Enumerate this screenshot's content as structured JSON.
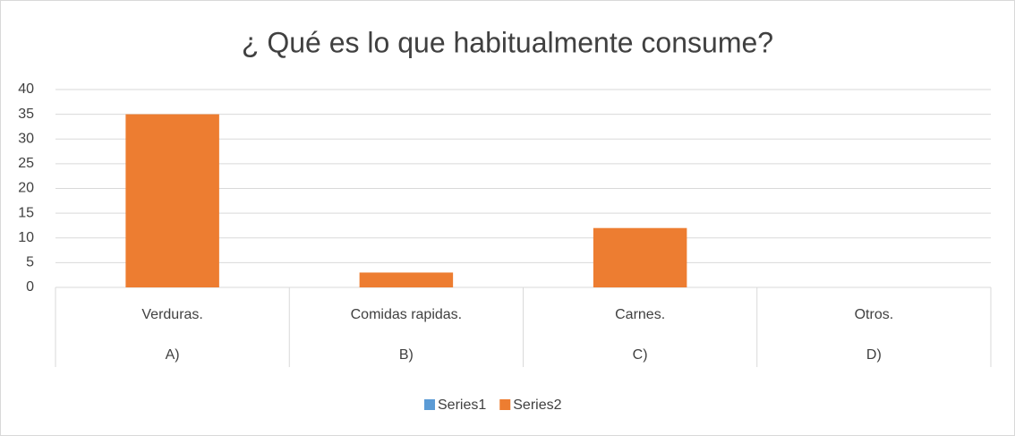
{
  "chart_data": {
    "type": "bar",
    "title": "¿ Qué es lo que habitualmente consume?",
    "categories": [
      "Verduras.",
      "Comidas rapidas.",
      "Carnes.",
      "Otros."
    ],
    "category_groups": [
      "A)",
      "B)",
      "C)",
      "D)"
    ],
    "series": [
      {
        "name": "Series1",
        "color": "#5b9bd5",
        "values": [
          null,
          null,
          null,
          null
        ]
      },
      {
        "name": "Series2",
        "color": "#ed7d31",
        "values": [
          35,
          3,
          12,
          0
        ]
      }
    ],
    "ylim": [
      0,
      40
    ],
    "yticks": [
      0,
      5,
      10,
      15,
      20,
      25,
      30,
      35,
      40
    ],
    "grid": true,
    "legend": "bottom"
  }
}
